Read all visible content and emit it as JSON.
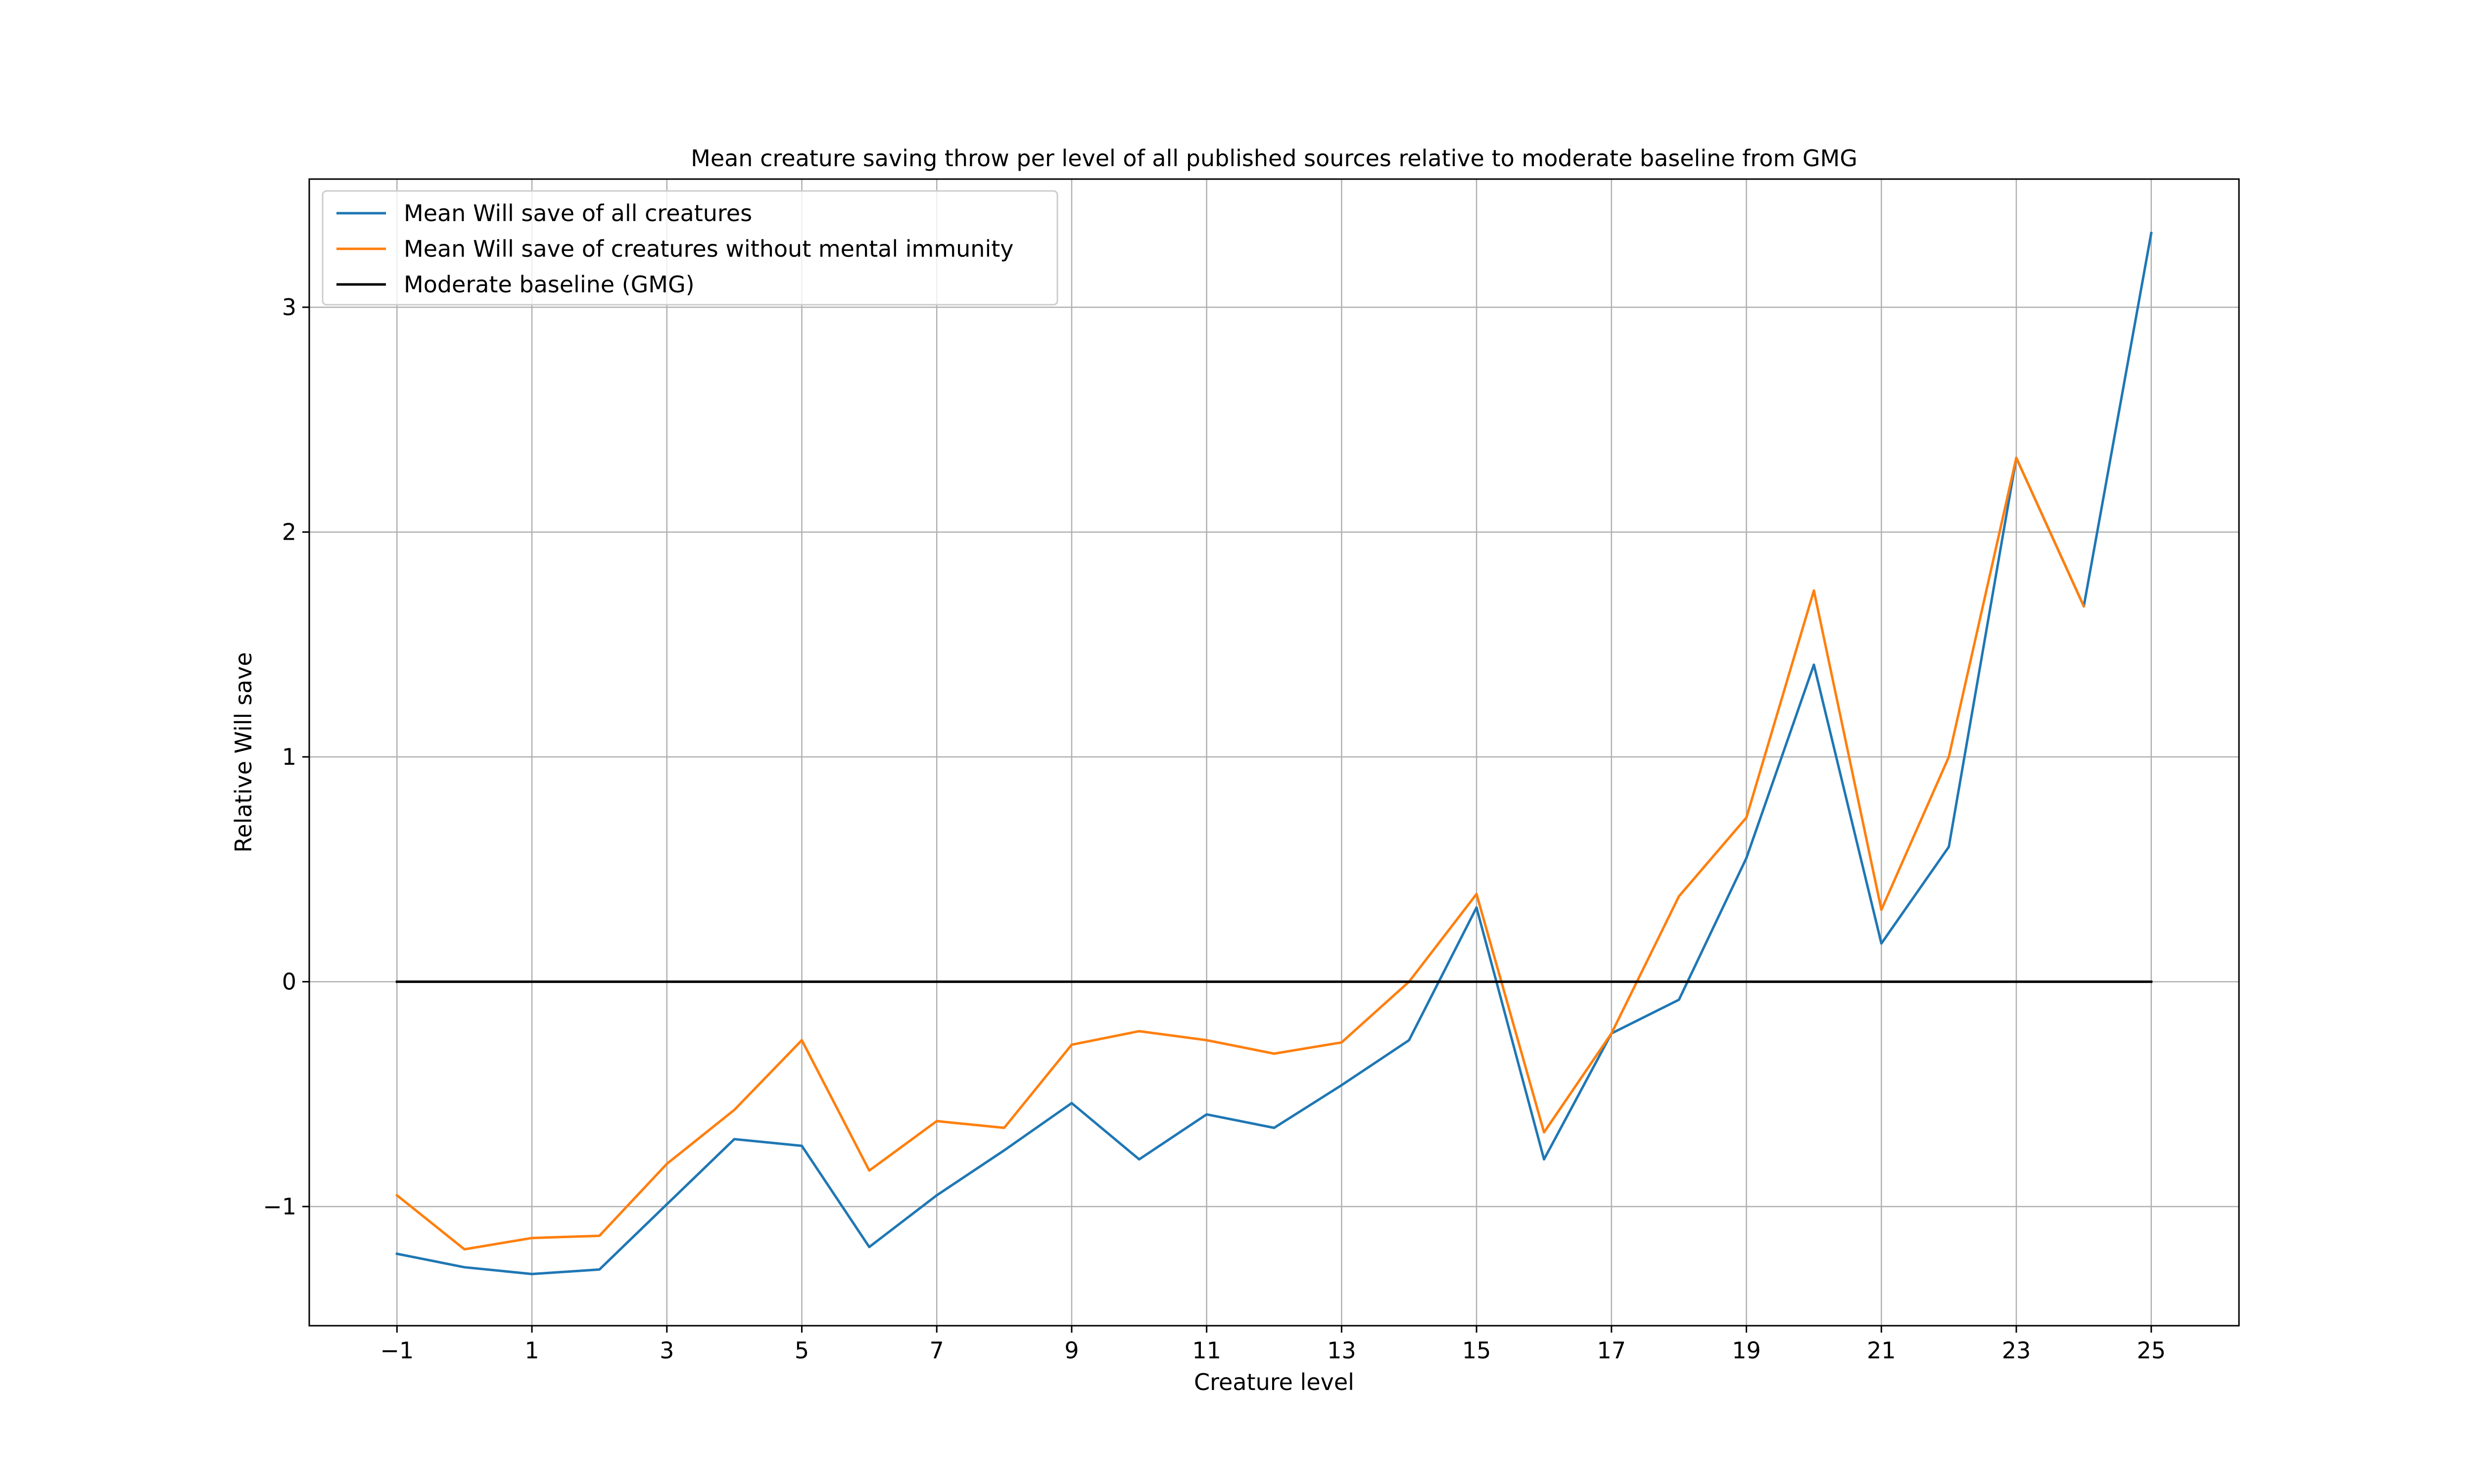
{
  "chart_data": {
    "type": "line",
    "title": "Mean creature saving throw per level of all published sources relative to moderate baseline from GMG",
    "xlabel": "Creature level",
    "ylabel": "Relative Will save",
    "xlim": [
      -2.3,
      26.3
    ],
    "ylim": [
      -1.53,
      3.57
    ],
    "xticks": [
      -1,
      1,
      3,
      5,
      7,
      9,
      11,
      13,
      15,
      17,
      19,
      21,
      23,
      25
    ],
    "xtick_labels": [
      "−1",
      "1",
      "3",
      "5",
      "7",
      "9",
      "11",
      "13",
      "15",
      "17",
      "19",
      "21",
      "23",
      "25"
    ],
    "yticks": [
      -1,
      0,
      1,
      2,
      3
    ],
    "ytick_labels": [
      "−1",
      "0",
      "1",
      "2",
      "3"
    ],
    "grid": true,
    "legend_position": "top-left",
    "x": [
      -1,
      0,
      1,
      2,
      3,
      4,
      5,
      6,
      7,
      8,
      9,
      10,
      11,
      12,
      13,
      14,
      15,
      16,
      17,
      18,
      19,
      20,
      21,
      22,
      23,
      24,
      25
    ],
    "series": [
      {
        "name": "Mean Will save of all creatures",
        "color": "#1f77b4",
        "values": [
          -1.21,
          -1.27,
          -1.3,
          -1.28,
          -0.99,
          -0.7,
          -0.73,
          -1.18,
          -0.95,
          -0.75,
          -0.54,
          -0.79,
          -0.59,
          -0.65,
          -0.46,
          -0.26,
          0.33,
          -0.79,
          -0.23,
          -0.08,
          0.55,
          1.41,
          0.17,
          0.6,
          2.33,
          1.67,
          3.33
        ]
      },
      {
        "name": "Mean Will save of creatures without mental immunity",
        "color": "#ff7f0e",
        "values": [
          -0.95,
          -1.19,
          -1.14,
          -1.13,
          -0.81,
          -0.57,
          -0.26,
          -0.84,
          -0.62,
          -0.65,
          -0.28,
          -0.22,
          -0.26,
          -0.32,
          -0.27,
          0.0,
          0.39,
          -0.67,
          -0.23,
          0.38,
          0.73,
          1.74,
          0.32,
          1.0,
          2.33,
          1.67,
          null
        ]
      },
      {
        "name": "Moderate baseline (GMG)",
        "color": "#000000",
        "values": [
          0,
          0,
          0,
          0,
          0,
          0,
          0,
          0,
          0,
          0,
          0,
          0,
          0,
          0,
          0,
          0,
          0,
          0,
          0,
          0,
          0,
          0,
          0,
          0,
          0,
          0,
          0
        ]
      }
    ]
  }
}
